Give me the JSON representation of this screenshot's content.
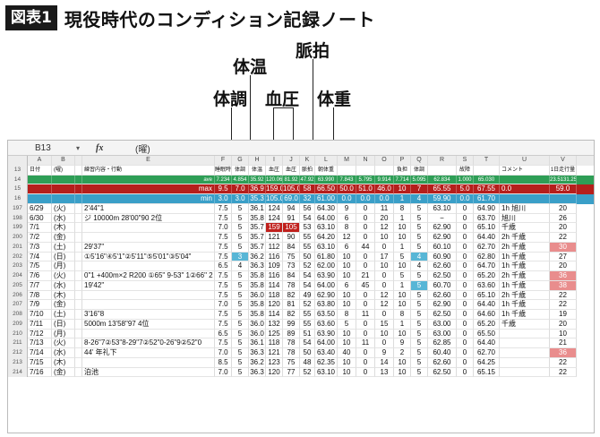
{
  "title": {
    "badge": "図表1",
    "text": "現役時代のコンディション記録ノート"
  },
  "callouts": {
    "taion": "体温",
    "myakuhaku": "脈拍",
    "taicho": "体調",
    "ketsuatsu": "血圧",
    "taiju": "体重"
  },
  "formula_bar": {
    "cell_ref": "B13",
    "dropdown": "▾",
    "fx": "fx",
    "value": "(曜)"
  },
  "columns": [
    "A",
    "B",
    "",
    "E",
    "F",
    "G",
    "H",
    "I",
    "J",
    "K",
    "L",
    "M",
    "N",
    "O",
    "P",
    "Q",
    "R",
    "S",
    "T",
    "U",
    "V"
  ],
  "header_row": {
    "num": "13",
    "cells": [
      "日付",
      "(曜)",
      "",
      "練習内容・行動",
      "睡眠時間",
      "体調",
      "体温",
      "血圧",
      "血圧",
      "脈拍",
      "朝体重",
      "",
      "",
      "",
      "負担",
      "体調",
      "",
      "故障",
      "",
      "コメント",
      "1日走行量"
    ]
  },
  "ave_row": {
    "num": "14",
    "cells": [
      "",
      "",
      "",
      "ave",
      "7.234",
      "4.854",
      "35.92",
      "120.06",
      "81.92",
      "47.92",
      "63.990",
      "7.843",
      "5.795",
      "9.914",
      "7.714",
      "5.095",
      "62.834",
      "1.000",
      "65.030",
      "",
      "23.5131.2568"
    ]
  },
  "max_row": {
    "num": "15",
    "cells": [
      "",
      "",
      "",
      "max",
      "9.5",
      "7.0",
      "36.9",
      "159.0",
      "105.0",
      "58",
      "66.50",
      "50.0",
      "51.0",
      "46.0",
      "10",
      "7",
      "65.55",
      "5.0",
      "67.55",
      "0.0",
      "59.0"
    ]
  },
  "min_row": {
    "num": "16",
    "cells": [
      "",
      "",
      "",
      "min",
      "3.0",
      "3.0",
      "35.3",
      "105.0",
      "69.0",
      "32",
      "61.00",
      "0.0",
      "0.0",
      "0.0",
      "1",
      "4",
      "59.90",
      "0.0",
      "61.70",
      "",
      ""
    ]
  },
  "rows": [
    {
      "num": "197",
      "cells": [
        "6/29",
        "(火)",
        "",
        "2'44\"1",
        "7.5",
        "5",
        "36.1",
        "124",
        "94",
        "56",
        "64.30",
        "9",
        "0",
        "11",
        "8",
        "5",
        "63.10",
        "0",
        "64.90",
        "1h 旭川",
        "20"
      ]
    },
    {
      "num": "198",
      "cells": [
        "6/30",
        "(水)",
        "",
        "ジ 10000m 28'00\"90 2位",
        "7.5",
        "5",
        "35.8",
        "124",
        "91",
        "54",
        "64.00",
        "6",
        "0",
        "20",
        "1",
        "5",
        "−",
        "0",
        "63.70",
        "旭川",
        "26"
      ]
    },
    {
      "num": "199",
      "cells": [
        "7/1",
        "(木)",
        "",
        "",
        "7.0",
        "5",
        "35.7",
        "159",
        "105",
        "53",
        "63.10",
        "8",
        "0",
        "12",
        "10",
        "5",
        "62.90",
        "0",
        "65.10",
        "千歳",
        "20"
      ]
    },
    {
      "num": "200",
      "cells": [
        "7/2",
        "(金)",
        "",
        "",
        "7.5",
        "5",
        "35.7",
        "121",
        "90",
        "55",
        "64.20",
        "12",
        "0",
        "10",
        "10",
        "5",
        "62.90",
        "0",
        "64.40",
        "2h 千歳",
        "22"
      ]
    },
    {
      "num": "201",
      "cells": [
        "7/3",
        "(土)",
        "",
        "29'37\"",
        "7.5",
        "5",
        "35.7",
        "112",
        "84",
        "55",
        "63.10",
        "6",
        "44",
        "0",
        "1",
        "5",
        "60.10",
        "0",
        "62.70",
        "2h 千歳",
        "30"
      ]
    },
    {
      "num": "202",
      "cells": [
        "7/4",
        "(日)",
        "",
        "①5'16\"④5'1\"②5'11\"⑤5'01\"③5'04\"",
        "7.5",
        "3",
        "36.2",
        "116",
        "75",
        "50",
        "61.80",
        "10",
        "0",
        "17",
        "5",
        "4",
        "60.90",
        "0",
        "62.80",
        "1h 千歳",
        "27"
      ]
    },
    {
      "num": "203",
      "cells": [
        "7/5",
        "(月)",
        "",
        "",
        "6.5",
        "4",
        "36.3",
        "109",
        "73",
        "52",
        "62.00",
        "10",
        "0",
        "10",
        "10",
        "4",
        "62.60",
        "0",
        "64.70",
        "1h 千歳",
        "20"
      ]
    },
    {
      "num": "204",
      "cells": [
        "7/6",
        "(火)",
        "",
        "0\"1 +400m×2 R200 ①65\" 9-53\" 1②66\" 2",
        "7.5",
        "5",
        "35.8",
        "116",
        "84",
        "54",
        "63.90",
        "10",
        "21",
        "0",
        "5",
        "5",
        "62.50",
        "0",
        "65.20",
        "2h 千歳",
        "36"
      ]
    },
    {
      "num": "205",
      "cells": [
        "7/7",
        "(水)",
        "",
        "19'42\"",
        "7.5",
        "5",
        "35.8",
        "114",
        "78",
        "54",
        "64.00",
        "6",
        "45",
        "0",
        "1",
        "5",
        "60.70",
        "0",
        "63.60",
        "1h 千歳",
        "38"
      ]
    },
    {
      "num": "206",
      "cells": [
        "7/8",
        "(木)",
        "",
        "",
        "7.5",
        "5",
        "36.0",
        "118",
        "82",
        "49",
        "62.90",
        "10",
        "0",
        "12",
        "10",
        "5",
        "62.60",
        "0",
        "65.10",
        "2h 千歳",
        "22"
      ]
    },
    {
      "num": "207",
      "cells": [
        "7/9",
        "(金)",
        "",
        "",
        "7.0",
        "5",
        "35.8",
        "120",
        "81",
        "52",
        "63.80",
        "10",
        "0",
        "12",
        "10",
        "5",
        "62.90",
        "0",
        "64.40",
        "1h 千歳",
        "22"
      ]
    },
    {
      "num": "208",
      "cells": [
        "7/10",
        "(土)",
        "",
        "3'16\"8",
        "7.5",
        "5",
        "35.8",
        "114",
        "82",
        "55",
        "63.50",
        "8",
        "11",
        "0",
        "8",
        "5",
        "62.50",
        "0",
        "64.60",
        "1h 千歳",
        "19"
      ]
    },
    {
      "num": "209",
      "cells": [
        "7/11",
        "(日)",
        "",
        "5000m 13'58\"97 4位",
        "7.5",
        "5",
        "36.0",
        "132",
        "99",
        "55",
        "63.60",
        "5",
        "0",
        "15",
        "1",
        "5",
        "63.00",
        "0",
        "65.20",
        "千歳",
        "20"
      ]
    },
    {
      "num": "210",
      "cells": [
        "7/12",
        "(月)",
        "",
        "",
        "6.5",
        "5",
        "36.0",
        "125",
        "89",
        "51",
        "63.90",
        "10",
        "0",
        "10",
        "10",
        "5",
        "63.00",
        "0",
        "65.50",
        "",
        "10"
      ]
    },
    {
      "num": "211",
      "cells": [
        "7/13",
        "(火)",
        "",
        "8-26\"7②53\"8-29\"7②52\"0-26\"9②52\"0",
        "7.5",
        "5",
        "36.1",
        "118",
        "78",
        "54",
        "64.00",
        "10",
        "11",
        "0",
        "9",
        "5",
        "62.85",
        "0",
        "64.40",
        "",
        "21"
      ]
    },
    {
      "num": "212",
      "cells": [
        "7/14",
        "(水)",
        "",
        "44' 年礼下",
        "7.0",
        "5",
        "36.3",
        "121",
        "78",
        "50",
        "63.40",
        "40",
        "0",
        "9",
        "2",
        "5",
        "60.40",
        "0",
        "62.70",
        "",
        "36"
      ]
    },
    {
      "num": "213",
      "cells": [
        "7/15",
        "(木)",
        "",
        "",
        "8.5",
        "5",
        "36.2",
        "123",
        "75",
        "48",
        "62.35",
        "10",
        "0",
        "14",
        "10",
        "5",
        "62.60",
        "0",
        "64.25",
        "",
        "22"
      ]
    },
    {
      "num": "214",
      "cells": [
        "7/16",
        "(金)",
        "",
        "泊池",
        "7.0",
        "5",
        "36.3",
        "120",
        "77",
        "52",
        "63.10",
        "10",
        "0",
        "13",
        "10",
        "5",
        "62.50",
        "0",
        "65.15",
        "",
        "22"
      ]
    }
  ],
  "highlights": {
    "red": [
      [
        "199",
        "I"
      ],
      [
        "199",
        "J"
      ]
    ],
    "blue": [
      [
        "202",
        "G"
      ],
      [
        "202",
        "Q"
      ],
      [
        "205",
        "Q"
      ]
    ],
    "pink": [
      [
        "201",
        "V"
      ],
      [
        "204",
        "V"
      ],
      [
        "205",
        "V"
      ],
      [
        "212",
        "V"
      ]
    ]
  }
}
